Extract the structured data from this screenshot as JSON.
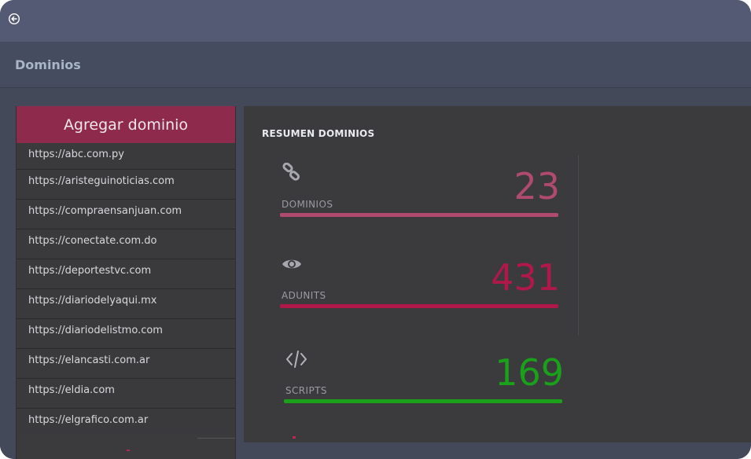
{
  "header": {
    "back_icon": "circle-arrow-left-icon",
    "title": "Dominios"
  },
  "sidebar": {
    "add_button_label": "Agregar dominio",
    "domains": [
      "https://abc.com.py",
      "https://aristeguinoticias.com",
      "https://compraensanjuan.com",
      "https://conectate.com.do",
      "https://deportestvc.com",
      "https://diariodelyaqui.mx",
      "https://diariodelistmo.com",
      "https://elancasti.com.ar",
      "https://eldia.com",
      "https://elgrafico.com.ar"
    ]
  },
  "summary": {
    "title": "RESUMEN DOMINIOS",
    "stats": [
      {
        "label": "DOMINIOS",
        "value": "23",
        "icon": "link-icon",
        "color": "#b04a6e"
      },
      {
        "label": "ADUNITS",
        "value": "431",
        "icon": "eye-icon",
        "color": "#b0184a"
      },
      {
        "label": "SCRIPTS",
        "value": "169",
        "icon": "code-icon",
        "color": "#1aa01a"
      }
    ]
  },
  "colors": {
    "accent": "#8e2a4c",
    "topbar": "#555a74",
    "panel": "#3b3b3e"
  }
}
